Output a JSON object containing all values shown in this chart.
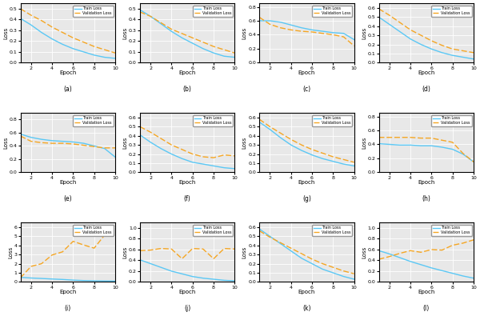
{
  "subplots": [
    {
      "label": "(a)",
      "train": [
        0.41,
        0.35,
        0.28,
        0.22,
        0.17,
        0.13,
        0.1,
        0.07,
        0.05,
        0.04
      ],
      "val": [
        0.5,
        0.44,
        0.39,
        0.33,
        0.28,
        0.23,
        0.19,
        0.15,
        0.12,
        0.09
      ],
      "ylim": [
        0.0,
        0.55
      ],
      "yticks": [
        0.0,
        0.1,
        0.2,
        0.3,
        0.4,
        0.5
      ]
    },
    {
      "label": "(b)",
      "train": [
        0.49,
        0.43,
        0.36,
        0.29,
        0.23,
        0.18,
        0.13,
        0.09,
        0.06,
        0.05
      ],
      "val": [
        0.47,
        0.43,
        0.37,
        0.31,
        0.27,
        0.23,
        0.19,
        0.15,
        0.12,
        0.09
      ],
      "ylim": [
        0.0,
        0.55
      ],
      "yticks": [
        0.0,
        0.1,
        0.2,
        0.3,
        0.4,
        0.5
      ]
    },
    {
      "label": "(c)",
      "train": [
        0.6,
        0.6,
        0.58,
        0.54,
        0.5,
        0.47,
        0.45,
        0.43,
        0.42,
        0.33
      ],
      "val": [
        0.65,
        0.55,
        0.5,
        0.47,
        0.45,
        0.44,
        0.42,
        0.4,
        0.37,
        0.24
      ],
      "ylim": [
        0.0,
        0.85
      ],
      "yticks": [
        0.0,
        0.2,
        0.4,
        0.6,
        0.8
      ]
    },
    {
      "label": "(d)",
      "train": [
        0.5,
        0.42,
        0.34,
        0.26,
        0.2,
        0.15,
        0.11,
        0.08,
        0.06,
        0.04
      ],
      "val": [
        0.59,
        0.52,
        0.44,
        0.36,
        0.3,
        0.24,
        0.19,
        0.15,
        0.13,
        0.11
      ],
      "ylim": [
        0.0,
        0.65
      ],
      "yticks": [
        0.0,
        0.1,
        0.2,
        0.3,
        0.4,
        0.5,
        0.6
      ]
    },
    {
      "label": "(e)",
      "train": [
        0.58,
        0.53,
        0.5,
        0.48,
        0.47,
        0.46,
        0.44,
        0.4,
        0.36,
        0.23
      ],
      "val": [
        0.55,
        0.47,
        0.45,
        0.44,
        0.44,
        0.43,
        0.41,
        0.39,
        0.37,
        0.37
      ],
      "ylim": [
        0.0,
        0.9
      ],
      "yticks": [
        0.0,
        0.2,
        0.4,
        0.6,
        0.8
      ]
    },
    {
      "label": "(f)",
      "train": [
        0.41,
        0.33,
        0.26,
        0.2,
        0.15,
        0.11,
        0.09,
        0.07,
        0.05,
        0.04
      ],
      "val": [
        0.5,
        0.44,
        0.37,
        0.3,
        0.25,
        0.2,
        0.17,
        0.16,
        0.19,
        0.18
      ],
      "ylim": [
        0.0,
        0.65
      ],
      "yticks": [
        0.0,
        0.1,
        0.2,
        0.3,
        0.4,
        0.5,
        0.6
      ]
    },
    {
      "label": "(g)",
      "train": [
        0.55,
        0.47,
        0.38,
        0.3,
        0.24,
        0.19,
        0.15,
        0.12,
        0.09,
        0.07
      ],
      "val": [
        0.58,
        0.5,
        0.43,
        0.36,
        0.3,
        0.25,
        0.21,
        0.17,
        0.14,
        0.11
      ],
      "ylim": [
        0.0,
        0.65
      ],
      "yticks": [
        0.0,
        0.1,
        0.2,
        0.3,
        0.4,
        0.5,
        0.6
      ]
    },
    {
      "label": "(h)",
      "train": [
        0.41,
        0.4,
        0.39,
        0.39,
        0.38,
        0.38,
        0.36,
        0.33,
        0.26,
        0.15
      ],
      "val": [
        0.5,
        0.5,
        0.5,
        0.5,
        0.49,
        0.49,
        0.46,
        0.43,
        0.27,
        0.15
      ],
      "ylim": [
        0.0,
        0.85
      ],
      "yticks": [
        0.0,
        0.2,
        0.4,
        0.6,
        0.8
      ]
    },
    {
      "label": "(i)",
      "train": [
        0.5,
        0.43,
        0.38,
        0.32,
        0.27,
        0.2,
        0.15,
        0.12,
        0.1,
        0.09
      ],
      "val": [
        0.45,
        1.7,
        2.0,
        2.95,
        3.3,
        4.45,
        4.05,
        3.7,
        5.15,
        5.2
      ],
      "ylim": [
        0.0,
        6.5
      ],
      "yticks": [
        0,
        1,
        2,
        3,
        4,
        5,
        6
      ]
    },
    {
      "label": "(j)",
      "train": [
        0.41,
        0.34,
        0.27,
        0.2,
        0.15,
        0.1,
        0.07,
        0.05,
        0.03,
        0.02
      ],
      "val": [
        0.58,
        0.59,
        0.62,
        0.61,
        0.43,
        0.62,
        0.61,
        0.43,
        0.62,
        0.61
      ],
      "ylim": [
        0.0,
        1.1
      ],
      "yticks": [
        0.0,
        0.2,
        0.4,
        0.6,
        0.8,
        1.0
      ]
    },
    {
      "label": "(k)",
      "train": [
        0.58,
        0.5,
        0.42,
        0.34,
        0.26,
        0.2,
        0.14,
        0.1,
        0.06,
        0.03
      ],
      "val": [
        0.56,
        0.49,
        0.43,
        0.37,
        0.31,
        0.25,
        0.2,
        0.16,
        0.12,
        0.09
      ],
      "ylim": [
        0.0,
        0.65
      ],
      "yticks": [
        0.0,
        0.1,
        0.2,
        0.3,
        0.4,
        0.5,
        0.6
      ]
    },
    {
      "label": "(l)",
      "train": [
        0.58,
        0.52,
        0.45,
        0.38,
        0.32,
        0.26,
        0.21,
        0.16,
        0.11,
        0.07
      ],
      "val": [
        0.42,
        0.47,
        0.53,
        0.58,
        0.55,
        0.6,
        0.59,
        0.68,
        0.72,
        0.78
      ],
      "ylim": [
        0.0,
        1.1
      ],
      "yticks": [
        0.0,
        0.2,
        0.4,
        0.6,
        0.8,
        1.0
      ]
    }
  ],
  "train_color": "#5bc8f5",
  "val_color": "#f5a623",
  "xlabel": "Epoch",
  "ylabel": "Loss",
  "xticks": [
    2,
    4,
    6,
    8,
    10
  ],
  "legend_train": "Train Loss",
  "legend_val": "Validation Loss",
  "bg_color": "#e8e8e8"
}
